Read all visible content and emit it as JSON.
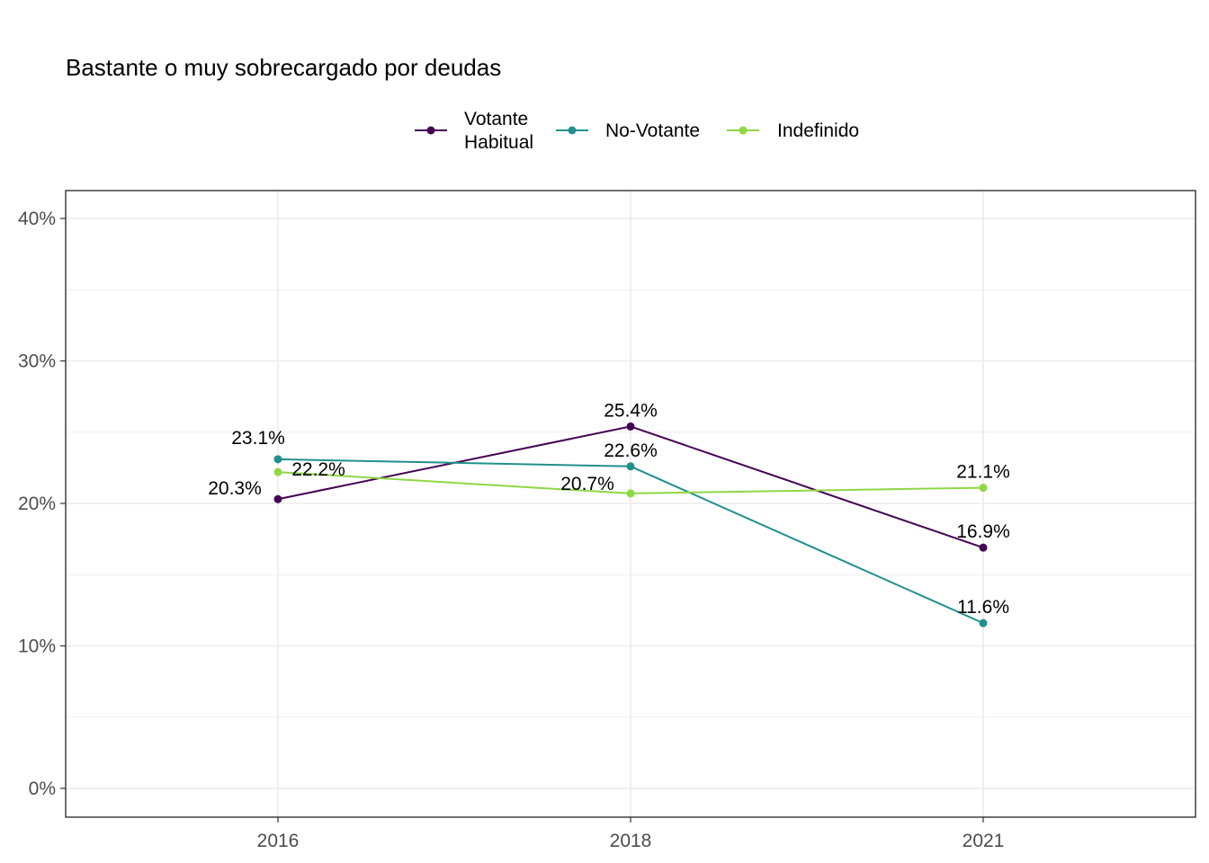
{
  "chart_data": {
    "type": "line",
    "title": "Bastante o muy sobrecargado por deudas",
    "xlabel": "",
    "ylabel": "",
    "categories": [
      "2016",
      "2018",
      "2021"
    ],
    "y_ticks": [
      "0%",
      "10%",
      "20%",
      "30%",
      "40%"
    ],
    "ylim": [
      -2,
      42
    ],
    "grid": true,
    "legend_position": "top",
    "series": [
      {
        "name": "Votante\nHabitual",
        "name_lines": [
          "Votante",
          "Habitual"
        ],
        "color": "#440154",
        "values": [
          20.3,
          25.4,
          16.9
        ],
        "labels": [
          "20.3%",
          "25.4%",
          "16.9%"
        ]
      },
      {
        "name": "No-Votante",
        "name_lines": [
          "No-Votante"
        ],
        "color": "#21908C",
        "values": [
          23.1,
          22.6,
          11.6
        ],
        "labels": [
          "23.1%",
          "22.6%",
          "11.6%"
        ]
      },
      {
        "name": "Indefinido",
        "name_lines": [
          "Indefinido"
        ],
        "color": "#8FD744",
        "values": [
          22.2,
          20.7,
          21.1
        ],
        "labels": [
          "22.2%",
          "20.7%",
          "21.1%"
        ]
      }
    ]
  }
}
